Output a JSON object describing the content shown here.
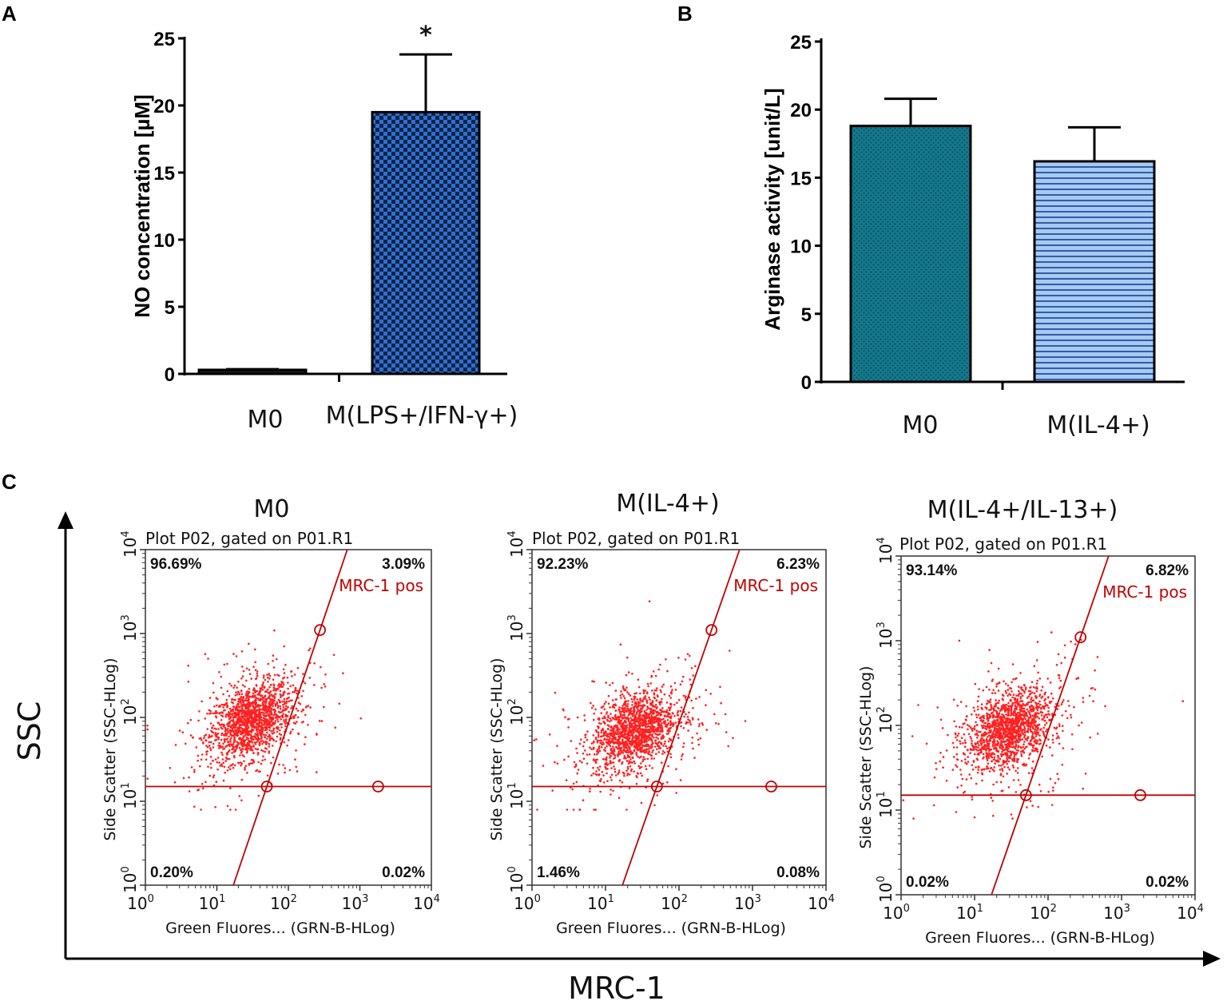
{
  "colors": {
    "barA": "#2f6fd0",
    "barB_M0": "#14788c",
    "barB_IL4": "#a9c9f0",
    "gate_red": "#c00000",
    "dots": "#ff2020"
  },
  "panels": {
    "A": {
      "letter": "A"
    },
    "B": {
      "letter": "B"
    },
    "C": {
      "letter": "C"
    }
  },
  "chart_data": [
    {
      "id": "A",
      "type": "bar",
      "title": "",
      "ylabel": "NO concentration [µM]",
      "xlabel": "",
      "categories": [
        "M0",
        "M(LPS+/IFN-γ+)"
      ],
      "values": [
        0.3,
        19.5
      ],
      "error_plus": [
        0.05,
        4.3
      ],
      "significance": [
        "",
        "*"
      ],
      "ylim": [
        0,
        25
      ],
      "yticks": [
        "0",
        "5",
        "10",
        "15",
        "20",
        "25"
      ],
      "yticks_values": [
        0,
        5,
        10,
        15,
        20,
        25
      ]
    },
    {
      "id": "B",
      "type": "bar",
      "title": "",
      "ylabel": "Arginase activity [unit/L]",
      "xlabel": "",
      "categories": [
        "M0",
        "M(IL-4+)"
      ],
      "values": [
        18.8,
        16.2
      ],
      "error_plus": [
        2.0,
        2.5
      ],
      "ylim": [
        0,
        25
      ],
      "yticks": [
        "0",
        "5",
        "10",
        "15",
        "20",
        "25"
      ],
      "yticks_values": [
        0,
        5,
        10,
        15,
        20,
        25
      ]
    },
    {
      "id": "C",
      "type": "scatter",
      "xlabel": "MRC-1",
      "ylabel": "SSC",
      "plots": [
        {
          "title": "M0",
          "subtitle": "Plot P02, gated on P01.R1",
          "x_axis_label": "Green Fluores... (GRN-B-HLog)",
          "y_axis_label": "Side Scatter (SSC-HLog)",
          "quadrants": {
            "upper_left": "96.69%",
            "upper_right": "3.09%",
            "lower_left": "0.20%",
            "lower_right": "0.02%"
          },
          "gate_label": "MRC-1 pos",
          "xlim": [
            1,
            10000
          ],
          "ylim": [
            1,
            10000
          ],
          "cluster_center": [
            30,
            90
          ]
        },
        {
          "title": "M(IL-4+)",
          "subtitle": "Plot P02, gated on P01.R1",
          "x_axis_label": "Green Fluores... (GRN-B-HLog)",
          "y_axis_label": "Side Scatter (SSC-HLog)",
          "quadrants": {
            "upper_left": "92.23%",
            "upper_right": "6.23%",
            "lower_left": "1.46%",
            "lower_right": "0.08%"
          },
          "gate_label": "MRC-1 pos",
          "xlim": [
            1,
            10000
          ],
          "ylim": [
            1,
            10000
          ],
          "cluster_center": [
            25,
            70
          ]
        },
        {
          "title": "M(IL-4+/IL-13+)",
          "subtitle": "Plot P02, gated on P01.R1",
          "x_axis_label": "Green Fluores... (GRN-B-HLog)",
          "y_axis_label": "Side Scatter (SSC-HLog)",
          "quadrants": {
            "upper_left": "93.14%",
            "upper_right": "6.82%",
            "lower_left": "0.02%",
            "lower_right": "0.02%"
          },
          "gate_label": "MRC-1 pos",
          "xlim": [
            1,
            10000
          ],
          "ylim": [
            1,
            10000
          ],
          "cluster_center": [
            30,
            90
          ]
        }
      ],
      "log_tick_base": "10",
      "log_tick_exponents": [
        "0",
        "1",
        "2",
        "3",
        "4"
      ]
    }
  ]
}
